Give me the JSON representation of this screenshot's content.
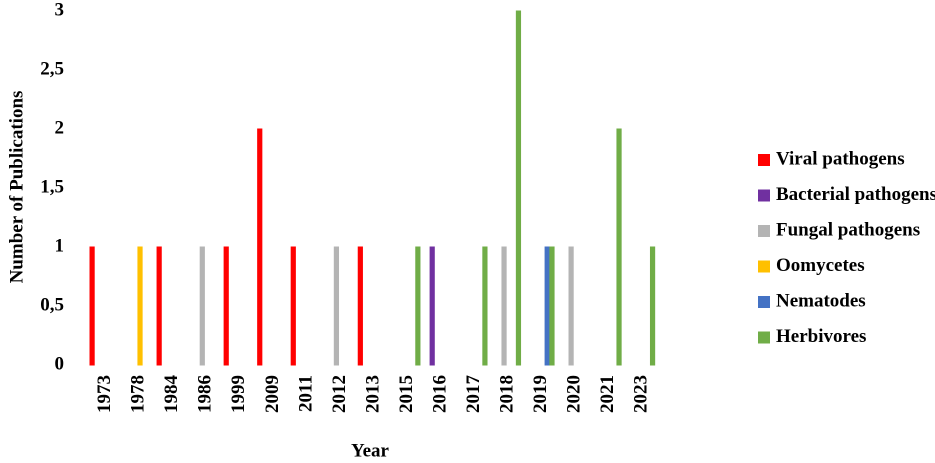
{
  "chart_data": {
    "type": "bar",
    "ylabel": "Number of Publications",
    "xlabel": "Year",
    "categories": [
      "1973",
      "1978",
      "1984",
      "1986",
      "1999",
      "2009",
      "2011",
      "2012",
      "2013",
      "2015",
      "2016",
      "2017",
      "2018",
      "2019",
      "2020",
      "2021",
      "2023"
    ],
    "series": [
      {
        "name": "Viral pathogens",
        "color": "#ff0000",
        "values": [
          1,
          0,
          1,
          0,
          1,
          2,
          1,
          0,
          1,
          0,
          0,
          0,
          0,
          0,
          0,
          0,
          0
        ]
      },
      {
        "name": "Bacterial pathogens",
        "color": "#7030a0",
        "values": [
          0,
          0,
          0,
          0,
          0,
          0,
          0,
          0,
          0,
          0,
          1,
          0,
          0,
          0,
          0,
          0,
          0
        ]
      },
      {
        "name": "Fungal pathogens",
        "color": "#b4b4b4",
        "values": [
          0,
          0,
          0,
          1,
          0,
          0,
          0,
          1,
          0,
          0,
          0,
          0,
          1,
          0,
          1,
          0,
          0
        ]
      },
      {
        "name": "Oomycetes",
        "color": "#ffc000",
        "values": [
          0,
          1,
          0,
          0,
          0,
          0,
          0,
          0,
          0,
          0,
          0,
          0,
          0,
          0,
          0,
          0,
          0
        ]
      },
      {
        "name": "Nematodes",
        "color": "#4472c4",
        "values": [
          0,
          0,
          0,
          0,
          0,
          0,
          0,
          0,
          0,
          0,
          0,
          0,
          0,
          1,
          0,
          0,
          0
        ]
      },
      {
        "name": "Herbivores",
        "color": "#70ad47",
        "values": [
          0,
          0,
          0,
          0,
          0,
          0,
          0,
          0,
          0,
          1,
          0,
          1,
          3,
          1,
          0,
          2,
          1
        ]
      }
    ],
    "ylim": [
      0,
      3
    ],
    "yticks": [
      0,
      {
        "value": 0.5,
        "label": "0,5"
      },
      1,
      {
        "value": 1.5,
        "label": "1,5"
      },
      2,
      {
        "value": 2.5,
        "label": "2,5"
      },
      3
    ],
    "legend": "right"
  }
}
